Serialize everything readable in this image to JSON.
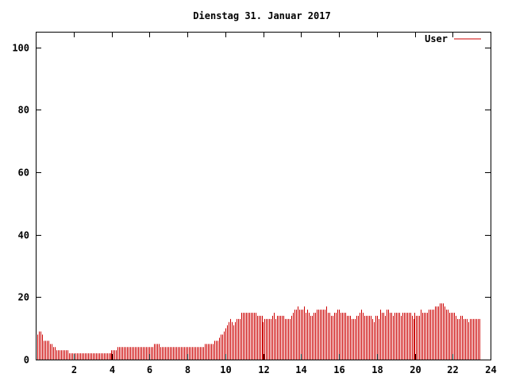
{
  "chart_data": {
    "type": "bar",
    "title": "Dienstag 31. Januar 2017",
    "xlabel": "",
    "ylabel": "",
    "xlim": [
      0,
      24
    ],
    "ylim": [
      0,
      105
    ],
    "x_ticks": [
      2,
      4,
      6,
      8,
      10,
      12,
      14,
      16,
      18,
      20,
      22,
      24
    ],
    "y_ticks": [
      0,
      20,
      40,
      60,
      80,
      100
    ],
    "grid": false,
    "legend_position": "top-right",
    "series": [
      {
        "name": "User",
        "color": "#cc0000",
        "interval_hours": 0.0833333,
        "values": [
          8,
          8,
          9,
          9,
          8,
          6,
          6,
          6,
          6,
          5,
          5,
          4,
          4,
          3,
          3,
          3,
          3,
          3,
          3,
          3,
          3,
          2,
          2,
          2,
          2,
          2,
          2,
          2,
          2,
          2,
          2,
          2,
          2,
          2,
          2,
          2,
          2,
          2,
          2,
          2,
          2,
          2,
          2,
          2,
          2,
          2,
          2,
          2,
          3,
          3,
          3,
          3,
          4,
          4,
          4,
          4,
          4,
          4,
          4,
          4,
          4,
          4,
          4,
          4,
          4,
          4,
          4,
          4,
          4,
          4,
          4,
          4,
          4,
          4,
          4,
          5,
          5,
          5,
          5,
          4,
          4,
          4,
          4,
          4,
          4,
          4,
          4,
          4,
          4,
          4,
          4,
          4,
          4,
          4,
          4,
          4,
          4,
          4,
          4,
          4,
          4,
          4,
          4,
          4,
          4,
          4,
          4,
          5,
          5,
          5,
          5,
          5,
          5,
          6,
          6,
          6,
          7,
          8,
          8,
          9,
          10,
          11,
          12,
          13,
          12,
          11,
          12,
          13,
          13,
          13,
          15,
          15,
          15,
          15,
          15,
          15,
          15,
          15,
          15,
          15,
          14,
          14,
          14,
          14,
          12,
          13,
          13,
          13,
          13,
          13,
          14,
          15,
          13,
          14,
          14,
          14,
          14,
          14,
          13,
          13,
          13,
          13,
          14,
          15,
          16,
          16,
          17,
          16,
          16,
          16,
          17,
          15,
          16,
          15,
          14,
          14,
          15,
          15,
          16,
          16,
          16,
          16,
          16,
          16,
          17,
          15,
          15,
          14,
          14,
          15,
          15,
          16,
          16,
          15,
          15,
          15,
          15,
          14,
          14,
          14,
          13,
          13,
          13,
          14,
          14,
          15,
          16,
          15,
          14,
          14,
          14,
          14,
          14,
          13,
          12,
          14,
          14,
          13,
          16,
          15,
          15,
          14,
          16,
          16,
          15,
          15,
          14,
          15,
          15,
          15,
          15,
          14,
          15,
          15,
          15,
          15,
          15,
          15,
          14,
          13,
          15,
          14,
          14,
          14,
          16,
          15,
          15,
          15,
          15,
          16,
          16,
          16,
          16,
          17,
          17,
          17,
          18,
          18,
          18,
          17,
          16,
          16,
          15,
          15,
          15,
          15,
          14,
          13,
          13,
          14,
          14,
          13,
          13,
          13,
          12,
          13,
          13,
          13,
          13,
          13,
          13,
          13
        ]
      }
    ]
  }
}
